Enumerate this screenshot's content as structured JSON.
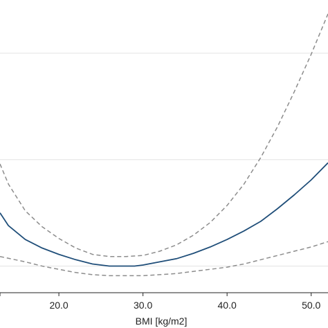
{
  "chart_data": {
    "type": "line",
    "title": "",
    "xlabel": "BMI [kg/m2]",
    "ylabel": "",
    "xlim": [
      13.0,
      52.0
    ],
    "ylim": [
      0.75,
      3.5
    ],
    "grid": {
      "horizontal": true,
      "vertical": false
    },
    "x_ticks": [
      {
        "value": 20,
        "label": "20.0"
      },
      {
        "value": 30,
        "label": "30.0"
      },
      {
        "value": 40,
        "label": "40.0"
      },
      {
        "value": 50,
        "label": "50.0"
      }
    ],
    "y_gridlines": [
      1.0,
      2.0,
      3.0
    ],
    "series": [
      {
        "style": "solid",
        "color": "#1f4e79",
        "x": [
          13,
          14,
          16,
          18,
          20,
          22,
          24,
          26,
          27.5,
          29,
          30,
          32,
          34,
          36,
          38,
          40,
          42,
          44,
          46,
          48,
          50,
          52
        ],
        "y": [
          1.5,
          1.38,
          1.25,
          1.17,
          1.11,
          1.06,
          1.02,
          1.0,
          1.0,
          1.0,
          1.01,
          1.04,
          1.07,
          1.12,
          1.18,
          1.25,
          1.33,
          1.42,
          1.54,
          1.67,
          1.81,
          1.97
        ]
      },
      {
        "style": "dashed",
        "color": "#8c8c8c",
        "x": [
          13,
          14,
          16,
          18,
          20,
          22,
          24,
          26,
          28,
          30,
          32,
          34,
          36,
          38,
          40,
          42,
          44,
          46,
          48,
          50,
          52
        ],
        "y": [
          1.96,
          1.77,
          1.52,
          1.37,
          1.26,
          1.17,
          1.11,
          1.09,
          1.09,
          1.1,
          1.14,
          1.2,
          1.29,
          1.41,
          1.57,
          1.77,
          2.02,
          2.31,
          2.64,
          2.99,
          3.37
        ]
      },
      {
        "style": "dashed",
        "color": "#8c8c8c",
        "x": [
          13,
          16,
          18,
          20,
          22,
          24,
          26,
          28,
          30,
          32,
          34,
          36,
          38,
          40,
          42,
          44,
          46,
          48,
          50,
          52
        ],
        "y": [
          1.09,
          1.04,
          1.0,
          0.97,
          0.94,
          0.92,
          0.91,
          0.91,
          0.91,
          0.92,
          0.93,
          0.95,
          0.97,
          0.99,
          1.02,
          1.06,
          1.1,
          1.14,
          1.18,
          1.23
        ]
      }
    ]
  }
}
